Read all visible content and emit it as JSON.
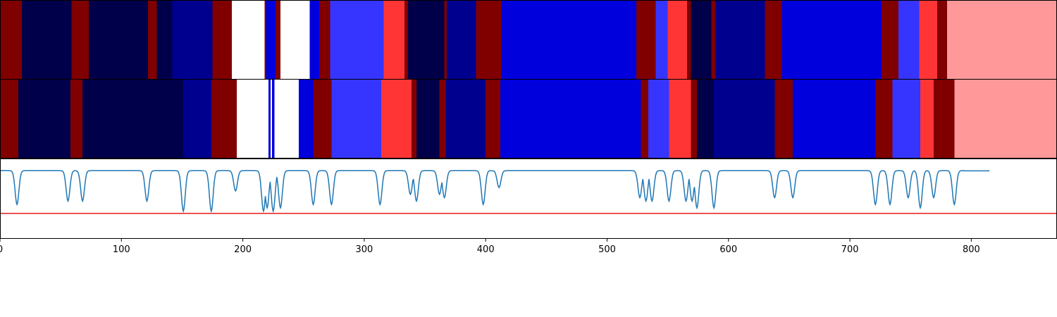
{
  "chart_data": {
    "type": "heatmap",
    "title": "",
    "xlabel": "",
    "ylabel": "",
    "xlim": [
      0,
      870
    ],
    "grid": false,
    "x_ticks": [
      0,
      100,
      200,
      300,
      400,
      500,
      600,
      700,
      800
    ],
    "palette": {
      "0": "#00004a",
      "1": "#00008f",
      "2": "#0000dc",
      "3": "#3535ff",
      "4": "#ff3535",
      "5": "#800000",
      "6": "#ffffff",
      "7": "#ff9999"
    },
    "rows": [
      {
        "name": "",
        "segments": [
          [
            0,
            18,
            5
          ],
          [
            18,
            59,
            0
          ],
          [
            59,
            73,
            5
          ],
          [
            73,
            122,
            0
          ],
          [
            122,
            129,
            5
          ],
          [
            129,
            142,
            0
          ],
          [
            142,
            175,
            1
          ],
          [
            175,
            191,
            5
          ],
          [
            191,
            218,
            6
          ],
          [
            218,
            219,
            5
          ],
          [
            219,
            227,
            2
          ],
          [
            227,
            231,
            5
          ],
          [
            231,
            255,
            6
          ],
          [
            255,
            263,
            2
          ],
          [
            263,
            272,
            5
          ],
          [
            272,
            316,
            3
          ],
          [
            316,
            333,
            4
          ],
          [
            333,
            336,
            5
          ],
          [
            336,
            366,
            0
          ],
          [
            366,
            368,
            5
          ],
          [
            368,
            392,
            1
          ],
          [
            392,
            413,
            5
          ],
          [
            413,
            524,
            2
          ],
          [
            524,
            540,
            5
          ],
          [
            540,
            550,
            3
          ],
          [
            550,
            566,
            4
          ],
          [
            566,
            569,
            5
          ],
          [
            569,
            586,
            0
          ],
          [
            586,
            589,
            5
          ],
          [
            589,
            630,
            1
          ],
          [
            630,
            644,
            5
          ],
          [
            644,
            726,
            2
          ],
          [
            726,
            740,
            5
          ],
          [
            740,
            757,
            3
          ],
          [
            757,
            772,
            4
          ],
          [
            772,
            780,
            5
          ],
          [
            780,
            870,
            7
          ]
        ]
      },
      {
        "name": "",
        "segments": [
          [
            0,
            15,
            5
          ],
          [
            15,
            58,
            0
          ],
          [
            58,
            68,
            5
          ],
          [
            68,
            151,
            0
          ],
          [
            151,
            174,
            1
          ],
          [
            174,
            195,
            5
          ],
          [
            195,
            221,
            6
          ],
          [
            221,
            223,
            2
          ],
          [
            223,
            224,
            6
          ],
          [
            224,
            226,
            2
          ],
          [
            226,
            246,
            6
          ],
          [
            246,
            258,
            2
          ],
          [
            258,
            273,
            5
          ],
          [
            273,
            314,
            3
          ],
          [
            314,
            339,
            4
          ],
          [
            339,
            343,
            5
          ],
          [
            343,
            362,
            0
          ],
          [
            362,
            367,
            5
          ],
          [
            367,
            400,
            1
          ],
          [
            400,
            412,
            5
          ],
          [
            412,
            528,
            2
          ],
          [
            528,
            534,
            5
          ],
          [
            534,
            551,
            3
          ],
          [
            551,
            569,
            4
          ],
          [
            569,
            574,
            5
          ],
          [
            574,
            588,
            0
          ],
          [
            588,
            638,
            1
          ],
          [
            638,
            653,
            5
          ],
          [
            653,
            721,
            2
          ],
          [
            721,
            735,
            5
          ],
          [
            735,
            758,
            3
          ],
          [
            758,
            769,
            4
          ],
          [
            769,
            786,
            5
          ],
          [
            786,
            870,
            7
          ]
        ]
      }
    ],
    "line_series": {
      "name": "",
      "color": "#1f77b4",
      "baseline": 0.0,
      "ylim": [
        -0.15,
        1.0
      ],
      "dips": [
        [
          14,
          0.5
        ],
        [
          56,
          0.45
        ],
        [
          68,
          0.45
        ],
        [
          121,
          0.45
        ],
        [
          151,
          0.6
        ],
        [
          174,
          0.6
        ],
        [
          194,
          0.3
        ],
        [
          217,
          0.6
        ],
        [
          220,
          0.55
        ],
        [
          225,
          0.6
        ],
        [
          231,
          0.55
        ],
        [
          258,
          0.5
        ],
        [
          273,
          0.5
        ],
        [
          313,
          0.5
        ],
        [
          338,
          0.35
        ],
        [
          343,
          0.45
        ],
        [
          362,
          0.35
        ],
        [
          366,
          0.4
        ],
        [
          398,
          0.5
        ],
        [
          411,
          0.25
        ],
        [
          527,
          0.4
        ],
        [
          532,
          0.45
        ],
        [
          537,
          0.45
        ],
        [
          551,
          0.45
        ],
        [
          565,
          0.45
        ],
        [
          570,
          0.45
        ],
        [
          574,
          0.55
        ],
        [
          588,
          0.55
        ],
        [
          638,
          0.4
        ],
        [
          653,
          0.4
        ],
        [
          721,
          0.5
        ],
        [
          733,
          0.5
        ],
        [
          748,
          0.4
        ],
        [
          758,
          0.55
        ],
        [
          769,
          0.4
        ],
        [
          786,
          0.5
        ]
      ]
    },
    "threshold": {
      "value": 0.0,
      "color": "#e41a1c"
    }
  }
}
